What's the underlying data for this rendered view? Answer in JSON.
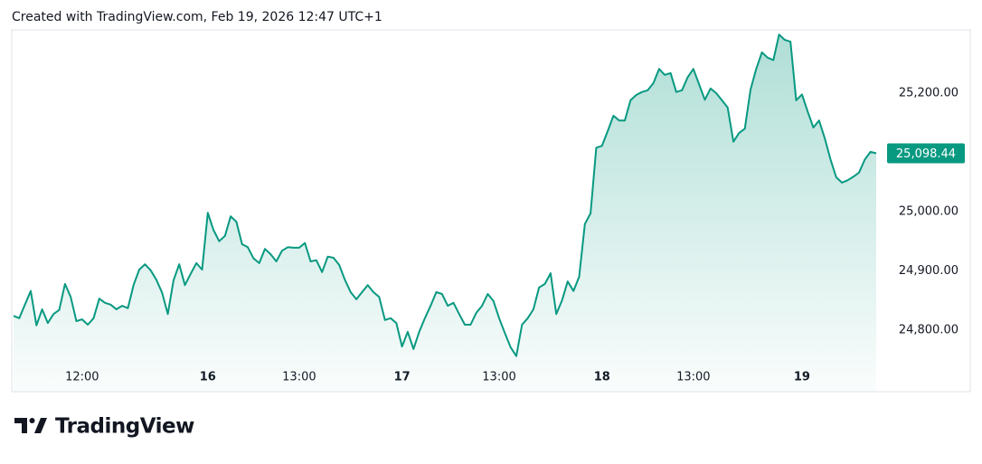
{
  "header": "Created with TradingView.com, Feb 19, 2026 12:47 UTC+1",
  "brand": "TradingView",
  "chart_data": {
    "type": "area",
    "color": "#089981",
    "categories": [
      null,
      null,
      null,
      null,
      null,
      null,
      null,
      null,
      null,
      null,
      null,
      null,
      "12:00",
      null,
      null,
      null,
      null,
      null,
      null,
      null,
      null,
      null,
      null,
      null,
      null,
      null,
      null,
      null,
      null,
      null,
      null,
      null,
      null,
      null,
      "16",
      null,
      null,
      null,
      null,
      null,
      null,
      null,
      null,
      null,
      null,
      null,
      null,
      null,
      null,
      null,
      "13:00",
      null,
      null,
      null,
      null,
      null,
      null,
      null,
      null,
      null,
      null,
      null,
      null,
      null,
      null,
      null,
      null,
      null,
      "17",
      null,
      null,
      null,
      null,
      null,
      null,
      null,
      null,
      null,
      null,
      null,
      null,
      null,
      null,
      null,
      null,
      "13:00",
      null,
      null,
      null,
      null,
      null,
      null,
      null,
      null,
      null,
      null,
      null,
      null,
      null,
      null,
      null,
      null,
      null,
      "18",
      null,
      null,
      null,
      null,
      null,
      null,
      null,
      null,
      null,
      null,
      null,
      null,
      null,
      null,
      null,
      "13:00",
      null,
      null,
      null,
      null,
      null,
      null,
      null,
      null,
      null,
      null,
      null,
      null,
      null,
      null,
      null,
      null,
      null,
      null,
      "19",
      null,
      null,
      null,
      null,
      null,
      null,
      null,
      null,
      null,
      null,
      null,
      null,
      null
    ],
    "values": [
      24824,
      24820,
      24843,
      24866,
      24808,
      24835,
      24812,
      24827,
      24834,
      24878,
      24856,
      24815,
      24818,
      24809,
      24820,
      24853,
      24846,
      24843,
      24835,
      24841,
      24837,
      24876,
      24902,
      24911,
      24901,
      24885,
      24863,
      24827,
      24884,
      24911,
      24876,
      24895,
      24913,
      24902,
      24998,
      24969,
      24950,
      24959,
      24992,
      24983,
      24945,
      24940,
      24921,
      24913,
      24937,
      24928,
      24916,
      24934,
      24940,
      24939,
      24939,
      24947,
      24916,
      24918,
      24898,
      24924,
      24922,
      24910,
      24885,
      24864,
      24852,
      24864,
      24876,
      24864,
      24856,
      24817,
      24820,
      24812,
      24772,
      24797,
      24768,
      24797,
      24820,
      24841,
      24864,
      24861,
      24841,
      24846,
      24827,
      24809,
      24809,
      24829,
      24841,
      24861,
      24849,
      24820,
      24795,
      24771,
      24756,
      24809,
      24820,
      24835,
      24872,
      24878,
      24896,
      24827,
      24850,
      24882,
      24866,
      24890,
      24979,
      24997,
      25108,
      25111,
      25136,
      25162,
      25154,
      25154,
      25188,
      25197,
      25202,
      25205,
      25217,
      25241,
      25231,
      25234,
      25202,
      25205,
      25227,
      25241,
      25215,
      25189,
      25208,
      25200,
      25188,
      25176,
      25118,
      25133,
      25140,
      25206,
      25241,
      25269,
      25260,
      25256,
      25299,
      25290,
      25287,
      25188,
      25198,
      25169,
      25142,
      25154,
      25124,
      25088,
      25058,
      25049,
      25053,
      25059,
      25066,
      25088,
      25101,
      25098.44
    ],
    "value_labels": [
      null,
      null,
      null,
      null,
      null,
      null,
      null,
      null,
      null,
      null,
      null,
      null,
      null,
      null,
      null,
      null,
      null,
      null,
      null,
      null,
      null,
      null,
      null,
      null,
      null,
      null,
      null,
      null,
      null,
      null,
      null,
      null,
      null,
      null,
      null,
      null,
      null,
      null,
      null,
      null,
      null,
      null,
      null,
      null,
      null,
      null,
      null,
      null,
      null,
      null,
      null,
      null,
      null,
      null,
      null,
      null,
      null,
      null,
      null,
      null,
      null,
      null,
      null,
      null,
      null,
      null,
      null,
      null,
      null,
      null,
      null,
      null,
      null,
      null,
      null,
      null,
      null,
      null,
      null,
      null,
      null,
      null,
      null,
      null,
      null,
      null,
      null,
      null,
      null,
      null,
      null,
      null,
      null,
      null,
      null,
      null,
      null,
      null,
      null,
      null,
      null,
      null,
      null,
      null,
      null,
      null,
      null,
      null,
      null,
      null,
      null,
      null,
      null,
      null,
      null,
      null,
      null,
      null,
      null,
      null,
      null,
      null,
      null,
      null,
      null,
      null,
      null,
      null,
      null,
      null,
      null,
      null,
      null,
      null,
      null,
      null,
      null,
      null,
      null,
      null,
      null,
      null,
      null,
      null,
      null,
      null,
      null,
      null,
      null,
      null,
      null,
      "25,098.44"
    ],
    "ylim": [
      24696,
      25307
    ],
    "yticks": [
      {
        "value": 24800,
        "label": "24,800.00"
      },
      {
        "value": 24900,
        "label": "24,900.00"
      },
      {
        "value": 25000,
        "label": "25,000.00"
      },
      {
        "value": 25200,
        "label": "25,200.00"
      }
    ]
  }
}
